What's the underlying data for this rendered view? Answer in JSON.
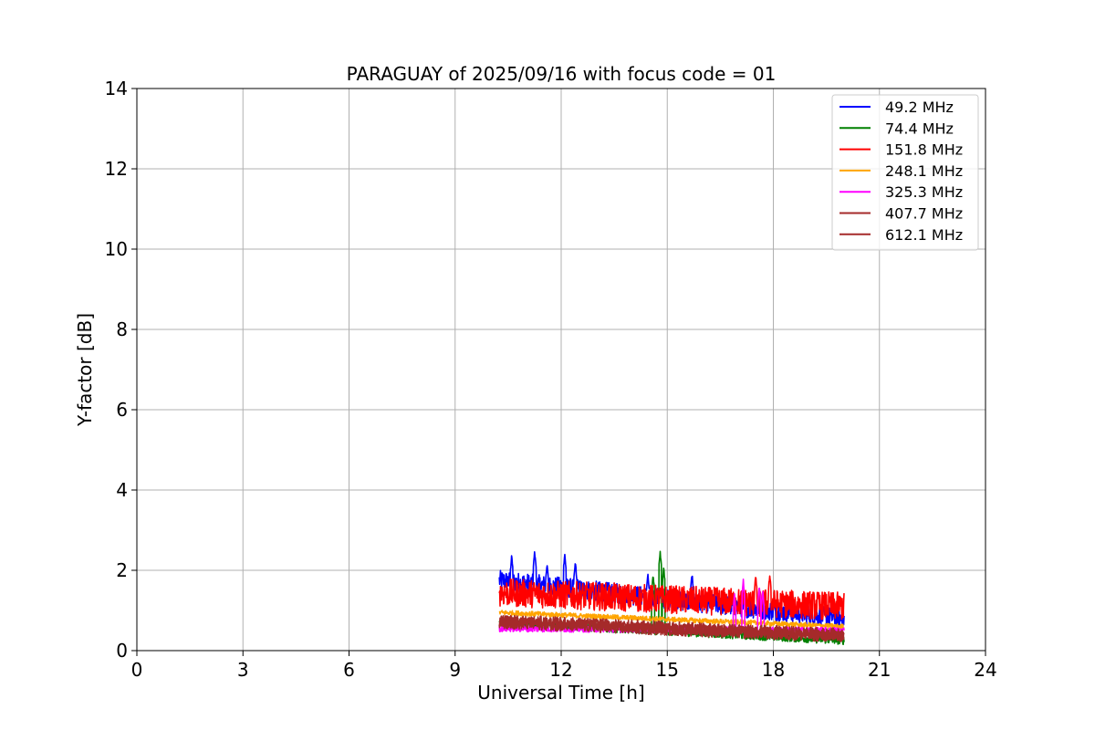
{
  "chart_data": {
    "type": "line",
    "title": "PARAGUAY of 2025/09/16 with focus code = 01",
    "xlabel": "Universal Time [h]",
    "ylabel": "Y-factor [dB]",
    "xlim": [
      0,
      24
    ],
    "ylim": [
      0,
      14
    ],
    "xticks": [
      0,
      3,
      6,
      9,
      12,
      15,
      18,
      21,
      24
    ],
    "yticks": [
      0,
      2,
      4,
      6,
      8,
      10,
      12,
      14
    ],
    "grid": true,
    "legend_position": "top-right",
    "series": [
      {
        "name": " 49.2 MHz",
        "color": "#0000ff",
        "t_start": 10.25,
        "t_end": 20.0,
        "base_start": 1.75,
        "base_end": 0.8,
        "noise": 0.25,
        "spikes": [
          [
            10.6,
            2.35
          ],
          [
            11.25,
            2.45
          ],
          [
            11.6,
            2.15
          ],
          [
            12.1,
            2.4
          ],
          [
            12.4,
            2.2
          ],
          [
            14.45,
            1.9
          ],
          [
            15.7,
            1.9
          ]
        ]
      },
      {
        "name": " 74.4 MHz",
        "color": "#008000",
        "t_start": 10.25,
        "t_end": 20.0,
        "base_start": 0.7,
        "base_end": 0.25,
        "noise": 0.1,
        "spikes": [
          [
            14.6,
            1.9
          ],
          [
            14.8,
            2.45
          ],
          [
            14.9,
            2.05
          ]
        ]
      },
      {
        "name": "151.8 MHz",
        "color": "#ff0000",
        "t_start": 10.25,
        "t_end": 20.0,
        "base_start": 1.45,
        "base_end": 1.1,
        "noise": 0.35,
        "spikes": [
          [
            17.9,
            1.9
          ],
          [
            17.5,
            1.85
          ]
        ]
      },
      {
        "name": "248.1 MHz",
        "color": "#ffa500",
        "t_start": 10.25,
        "t_end": 20.0,
        "base_start": 0.95,
        "base_end": 0.6,
        "noise": 0.06,
        "spikes": []
      },
      {
        "name": "325.3 MHz",
        "color": "#ff00ff",
        "t_start": 10.25,
        "t_end": 20.0,
        "base_start": 0.55,
        "base_end": 0.5,
        "noise": 0.08,
        "spikes": [
          [
            16.9,
            1.4
          ],
          [
            17.15,
            1.75
          ],
          [
            17.6,
            1.6
          ],
          [
            17.7,
            1.5
          ]
        ]
      },
      {
        "name": "407.7 MHz",
        "color": "#a52a2a",
        "t_start": 10.25,
        "t_end": 20.0,
        "base_start": 0.75,
        "base_end": 0.4,
        "noise": 0.15,
        "spikes": []
      },
      {
        "name": "612.1 MHz",
        "color": "#a52a2a",
        "t_start": 10.25,
        "t_end": 20.0,
        "base_start": 0.7,
        "base_end": 0.35,
        "noise": 0.15,
        "spikes": []
      }
    ]
  }
}
